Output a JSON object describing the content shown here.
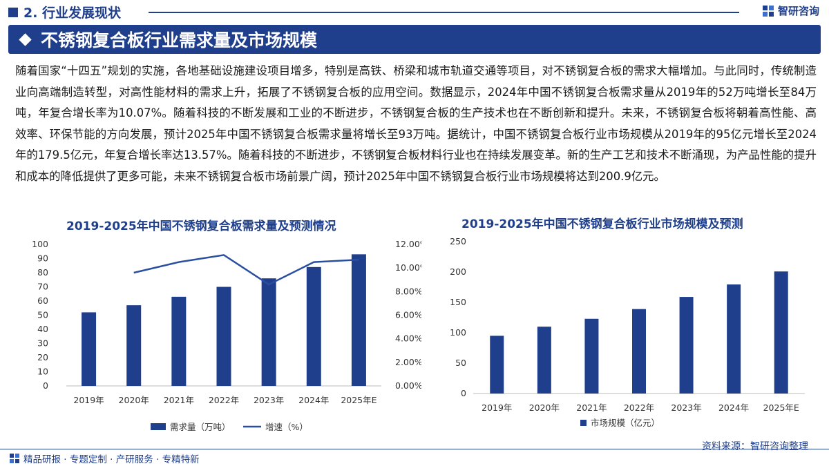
{
  "header": {
    "section": "2. 行业发展现状",
    "brand": "智研咨询"
  },
  "title": "不锈钢复合板行业需求量及市场规模",
  "paragraph": "随着国家“十四五”规划的实施，各地基础设施建设项目增多，特别是高铁、桥梁和城市轨道交通等项目，对不锈钢复合板的需求大幅增加。与此同时，传统制造业向高端制造转型，对高性能材料的需求上升，拓展了不锈钢复合板的应用空间。数据显示，2024年中国不锈钢复合板需求量从2019年的52万吨增长至84万吨，年复合增长率为10.07%。随着科技的不断发展和工业的不断进步，不锈钢复合板的生产技术也在不断创新和提升。未来，不锈钢复合板将朝着高性能、高效率、环保节能的方向发展，预计2025年中国不锈钢复合板需求量将增长至93万吨。据统计，中国不锈钢复合板行业市场规模从2019年的95亿元增长至2024年的179.5亿元，年复合增长率达13.57%。随着科技的不断进步，不锈钢复合板材料行业也在持续发展变革。新的生产工艺和技术不断涌现，为产品性能的提升和成本的降低提供了更多可能，未来不锈钢复合板市场前景广阔，预计2025年中国不锈钢复合板行业市场规模将达到200.9亿元。",
  "chart_data": [
    {
      "type": "bar",
      "title": "2019-2025年中国不锈钢复合板需求量及预测情况",
      "categories": [
        "2019年",
        "2020年",
        "2021年",
        "2022年",
        "2023年",
        "2024年",
        "2025年E"
      ],
      "series": [
        {
          "name": "需求量（万吨）",
          "type": "bar",
          "axis": "left",
          "values": [
            52,
            57,
            63,
            70,
            76,
            84,
            93
          ]
        },
        {
          "name": "增速（%）",
          "type": "line",
          "axis": "right",
          "values": [
            null,
            9.6,
            10.5,
            11.1,
            8.6,
            10.5,
            10.7
          ]
        }
      ],
      "y_left": {
        "min": 0,
        "max": 100,
        "ticks": [
          "0",
          "10",
          "20",
          "30",
          "40",
          "50",
          "60",
          "70",
          "80",
          "90",
          "100"
        ]
      },
      "y_right": {
        "min": 0,
        "max": 12,
        "ticks": [
          "0.00%",
          "2.00%",
          "4.00%",
          "6.00%",
          "8.00%",
          "10.00%",
          "12.00%"
        ]
      },
      "legend_position": "bottom",
      "colors": {
        "bar": "#1f3f8c",
        "line": "#2b4fa0"
      }
    },
    {
      "type": "bar",
      "title": "2019-2025年中国不锈钢复合板行业市场规模及预测",
      "categories": [
        "2019年",
        "2020年",
        "2021年",
        "2022年",
        "2023年",
        "2024年",
        "2025年E"
      ],
      "series": [
        {
          "name": "市场规模（亿元）",
          "values": [
            95,
            110,
            123,
            139,
            159,
            179.5,
            200.9
          ]
        }
      ],
      "y": {
        "min": 0,
        "max": 250,
        "ticks": [
          "0",
          "50",
          "100",
          "150",
          "200",
          "250"
        ]
      },
      "legend_position": "bottom",
      "colors": {
        "bar": "#1f3f8c"
      }
    }
  ],
  "footer": {
    "left": "精品研报 · 专题定制 · 产研服务 · 专精特新",
    "source": "资料来源：智研咨询整理"
  }
}
